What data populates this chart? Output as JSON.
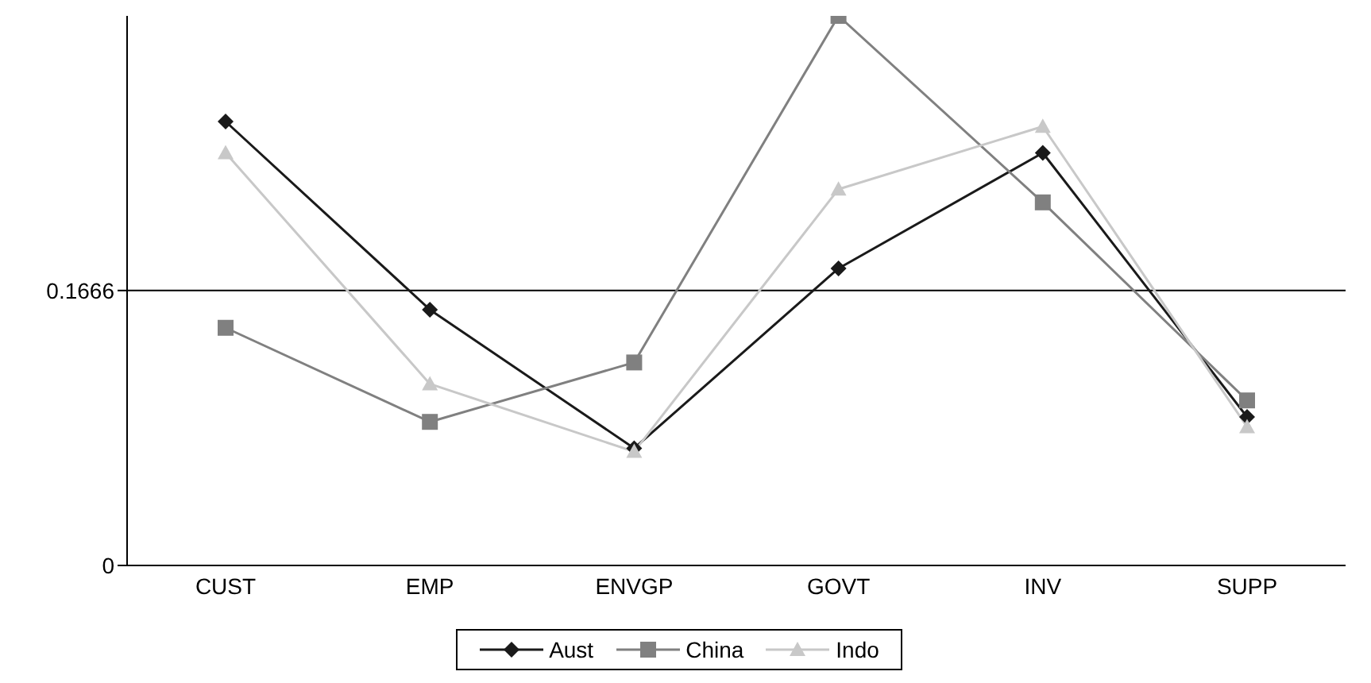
{
  "chart_data": {
    "type": "line",
    "categories": [
      "CUST",
      "EMP",
      "ENVGP",
      "GOVT",
      "INV",
      "SUPP"
    ],
    "series": [
      {
        "name": "Aust",
        "color": "#1a1a1a",
        "marker": "diamond",
        "values": [
          0.269,
          0.155,
          0.071,
          0.18,
          0.25,
          0.09
        ]
      },
      {
        "name": "China",
        "color": "#808080",
        "marker": "square",
        "values": [
          0.144,
          0.087,
          0.123,
          0.333,
          0.22,
          0.1
        ]
      },
      {
        "name": "Indo",
        "color": "#c8c8c8",
        "marker": "triangle",
        "values": [
          0.25,
          0.11,
          0.069,
          0.228,
          0.266,
          0.084
        ]
      }
    ],
    "ylim": [
      0,
      0.333
    ],
    "yticks": [
      0,
      0.1666
    ],
    "ref_lines": [
      {
        "axis": "y",
        "value": 0.1666,
        "color": "#000000"
      }
    ],
    "grid": false,
    "legend": "bottom",
    "line_style": "solid"
  }
}
